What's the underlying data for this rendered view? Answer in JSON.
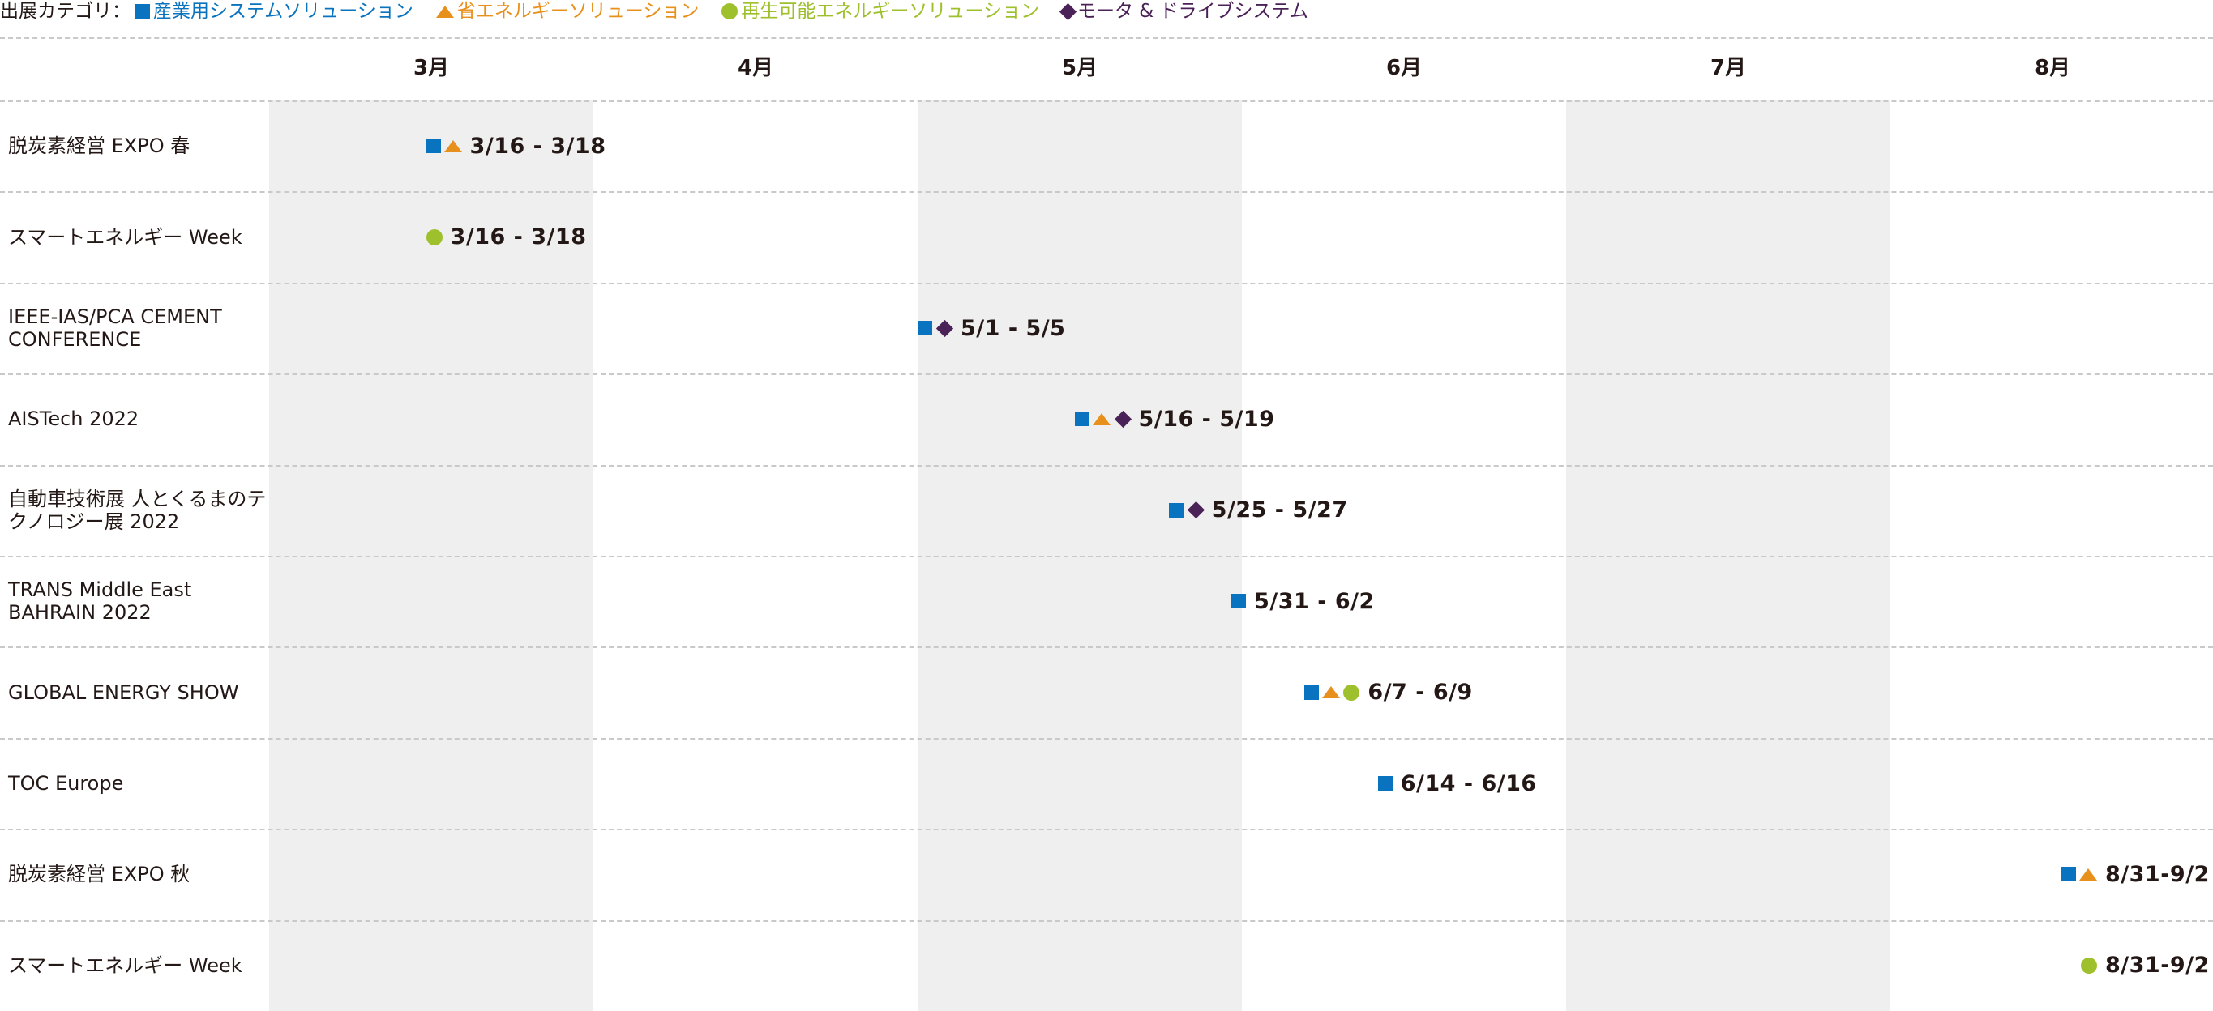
{
  "legend": {
    "title": "出展カテゴリ：",
    "items": [
      {
        "symbol": "square",
        "label": "産業用システムソリューション",
        "color": "#0a73bf"
      },
      {
        "symbol": "triangle",
        "label": "省エネルギーソリューション",
        "color": "#e8901c"
      },
      {
        "symbol": "circle",
        "label": "再生可能エネルギーソリューション",
        "color": "#9dc02c"
      },
      {
        "symbol": "diamond",
        "label": "モータ & ドライブシステム",
        "color": "#4b2257"
      }
    ]
  },
  "months": [
    "3月",
    "4月",
    "5月",
    "6月",
    "7月",
    "8月"
  ],
  "events": [
    {
      "name": "脱炭素経営 EXPO 春",
      "dates": "3/16 - 3/18",
      "start_date": "3/16",
      "categories": [
        "square",
        "triangle"
      ]
    },
    {
      "name": "スマートエネルギー Week",
      "dates": "3/16 - 3/18",
      "start_date": "3/16",
      "categories": [
        "circle"
      ]
    },
    {
      "name": "IEEE-IAS/PCA CEMENT CONFERENCE",
      "dates": "5/1 - 5/5",
      "start_date": "5/1",
      "categories": [
        "square",
        "diamond"
      ]
    },
    {
      "name": "AISTech 2022",
      "dates": "5/16 - 5/19",
      "start_date": "5/16",
      "categories": [
        "square",
        "triangle",
        "diamond"
      ]
    },
    {
      "name": "自動車技術展 人とくるまのテクノロジー展 2022",
      "dates": "5/25 - 5/27",
      "start_date": "5/25",
      "categories": [
        "square",
        "diamond"
      ]
    },
    {
      "name": "TRANS Middle East BAHRAIN 2022",
      "dates": "5/31 - 6/2",
      "start_date": "5/31",
      "categories": [
        "square"
      ]
    },
    {
      "name": "GLOBAL ENERGY SHOW",
      "dates": "6/7 - 6/9",
      "start_date": "6/7",
      "categories": [
        "square",
        "triangle",
        "circle"
      ]
    },
    {
      "name": "TOC Europe",
      "dates": "6/14 - 6/16",
      "start_date": "6/14",
      "categories": [
        "square"
      ]
    },
    {
      "name": "脱炭素経営 EXPO 秋",
      "dates": "8/31-9/2",
      "start_date": "8/31",
      "categories": [
        "square",
        "triangle"
      ]
    },
    {
      "name": "スマートエネルギー Week",
      "dates": "8/31-9/2",
      "start_date": "8/31",
      "categories": [
        "circle"
      ]
    }
  ]
}
